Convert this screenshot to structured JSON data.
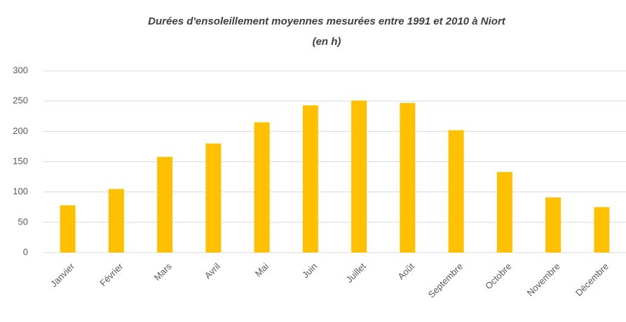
{
  "chart_data": {
    "type": "bar",
    "title": "Durées d'ensoleillement moyennes mesurées entre 1991 et 2010 à Niort (en h)",
    "categories": [
      "Janvier",
      "Février",
      "Mars",
      "Avril",
      "Mai",
      "Juin",
      "Juillet",
      "Août",
      "Septembre",
      "Octobre",
      "Novembre",
      "Décembre"
    ],
    "values": [
      78,
      105,
      158,
      180,
      215,
      243,
      251,
      247,
      202,
      133,
      91,
      75
    ],
    "color": "#ffc000",
    "ylim": [
      0,
      300
    ],
    "yticks": [
      0,
      50,
      100,
      150,
      200,
      250,
      300
    ],
    "grid": true
  }
}
